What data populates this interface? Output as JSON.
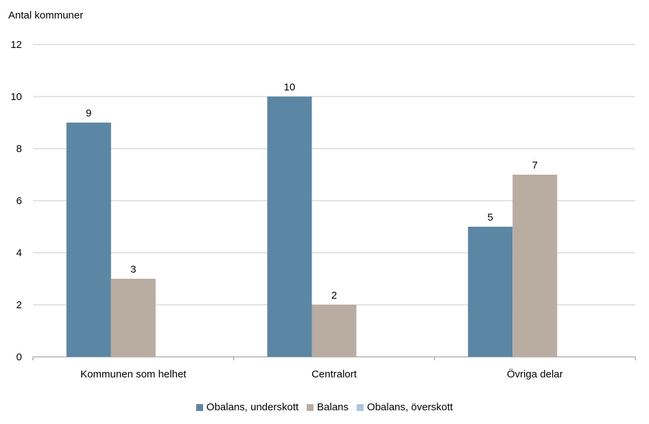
{
  "chart_data": {
    "type": "bar",
    "title": "",
    "xlabel": "",
    "ylabel": "Antal kommuner",
    "ylim": [
      0,
      12
    ],
    "yticks": [
      0,
      2,
      4,
      6,
      8,
      10,
      12
    ],
    "categories": [
      "Kommunen som helhet",
      "Centralort",
      "Övriga delar"
    ],
    "series": [
      {
        "name": "Obalans, underskott",
        "color": "#5b87a4",
        "values": [
          9,
          10,
          5
        ]
      },
      {
        "name": "Balans",
        "color": "#b9ada2",
        "values": [
          3,
          2,
          7
        ]
      },
      {
        "name": "Obalans, överskott",
        "color": "#a7c8dc",
        "values": [
          0,
          0,
          0
        ]
      }
    ],
    "data_labels": true,
    "grid": true,
    "legend_position": "bottom"
  }
}
